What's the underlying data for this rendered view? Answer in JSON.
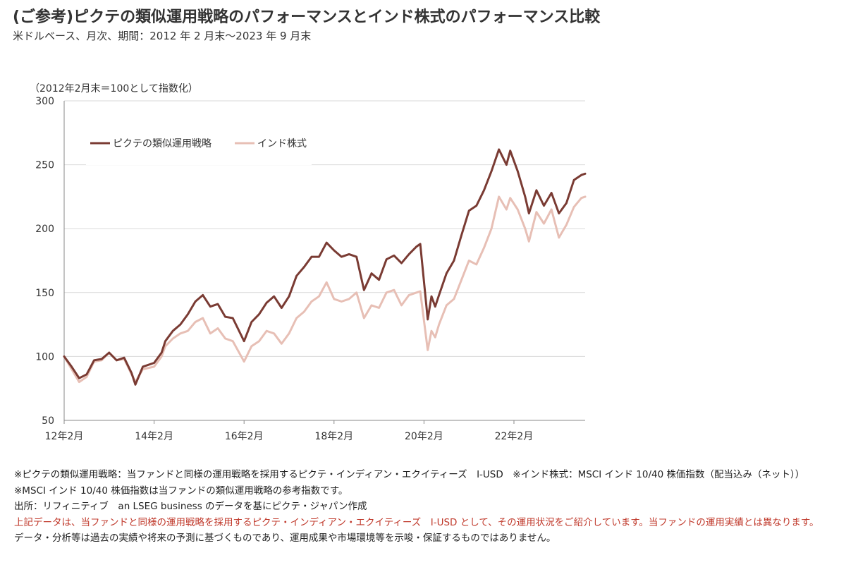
{
  "header": {
    "title": "(ご参考)ピクテの類似運用戦略のパフォーマンスとインド株式のパフォーマンス比較",
    "subtitle": "米ドルベース、月次、期間：2012 年 2 月末～2023 年 9 月末"
  },
  "chart_data": {
    "type": "line",
    "unit_label": "（2012年2月末＝100として指数化）",
    "ylim": [
      50,
      300
    ],
    "yticks": [
      "50",
      "100",
      "150",
      "200",
      "250",
      "300"
    ],
    "xlim": [
      "2012-02",
      "2023-09"
    ],
    "xticks": [
      {
        "date": "2012-02",
        "label": "12年2月"
      },
      {
        "date": "2014-02",
        "label": "14年2月"
      },
      {
        "date": "2016-02",
        "label": "16年2月"
      },
      {
        "date": "2018-02",
        "label": "18年2月"
      },
      {
        "date": "2020-02",
        "label": "20年2月"
      },
      {
        "date": "2022-02",
        "label": "22年2月"
      }
    ],
    "grid": "horizontal",
    "legend_position": "top-left",
    "series": [
      {
        "name": "ピクテの類似運用戦略",
        "color": "#7a3b33",
        "points": [
          [
            "2012-02",
            100
          ],
          [
            "2012-04",
            92
          ],
          [
            "2012-06",
            83
          ],
          [
            "2012-08",
            86
          ],
          [
            "2012-10",
            97
          ],
          [
            "2012-12",
            98
          ],
          [
            "2013-02",
            103
          ],
          [
            "2013-04",
            97
          ],
          [
            "2013-06",
            99
          ],
          [
            "2013-08",
            87
          ],
          [
            "2013-09",
            78
          ],
          [
            "2013-11",
            92
          ],
          [
            "2014-02",
            95
          ],
          [
            "2014-04",
            103
          ],
          [
            "2014-05",
            112
          ],
          [
            "2014-07",
            120
          ],
          [
            "2014-09",
            125
          ],
          [
            "2014-11",
            133
          ],
          [
            "2015-01",
            143
          ],
          [
            "2015-03",
            148
          ],
          [
            "2015-05",
            139
          ],
          [
            "2015-07",
            141
          ],
          [
            "2015-09",
            131
          ],
          [
            "2015-11",
            130
          ],
          [
            "2016-02",
            112
          ],
          [
            "2016-04",
            127
          ],
          [
            "2016-06",
            133
          ],
          [
            "2016-08",
            142
          ],
          [
            "2016-10",
            147
          ],
          [
            "2016-12",
            138
          ],
          [
            "2017-02",
            147
          ],
          [
            "2017-04",
            163
          ],
          [
            "2017-06",
            170
          ],
          [
            "2017-08",
            178
          ],
          [
            "2017-10",
            178
          ],
          [
            "2017-12",
            189
          ],
          [
            "2018-02",
            183
          ],
          [
            "2018-04",
            178
          ],
          [
            "2018-06",
            180
          ],
          [
            "2018-08",
            178
          ],
          [
            "2018-10",
            152
          ],
          [
            "2018-12",
            165
          ],
          [
            "2019-02",
            160
          ],
          [
            "2019-04",
            176
          ],
          [
            "2019-06",
            179
          ],
          [
            "2019-08",
            173
          ],
          [
            "2019-10",
            180
          ],
          [
            "2019-12",
            186
          ],
          [
            "2020-01",
            188
          ],
          [
            "2020-03",
            129
          ],
          [
            "2020-04",
            147
          ],
          [
            "2020-05",
            139
          ],
          [
            "2020-06",
            148
          ],
          [
            "2020-08",
            165
          ],
          [
            "2020-10",
            175
          ],
          [
            "2020-12",
            195
          ],
          [
            "2021-02",
            214
          ],
          [
            "2021-04",
            218
          ],
          [
            "2021-06",
            230
          ],
          [
            "2021-08",
            245
          ],
          [
            "2021-10",
            262
          ],
          [
            "2021-12",
            250
          ],
          [
            "2022-01",
            261
          ],
          [
            "2022-03",
            245
          ],
          [
            "2022-05",
            225
          ],
          [
            "2022-06",
            212
          ],
          [
            "2022-08",
            230
          ],
          [
            "2022-10",
            218
          ],
          [
            "2022-12",
            228
          ],
          [
            "2023-02",
            212
          ],
          [
            "2023-04",
            220
          ],
          [
            "2023-06",
            238
          ],
          [
            "2023-08",
            242
          ],
          [
            "2023-09",
            243
          ]
        ]
      },
      {
        "name": "インド株式",
        "color": "#e7bfb5",
        "points": [
          [
            "2012-02",
            100
          ],
          [
            "2012-04",
            90
          ],
          [
            "2012-06",
            80
          ],
          [
            "2012-08",
            84
          ],
          [
            "2012-10",
            96
          ],
          [
            "2012-12",
            97
          ],
          [
            "2013-02",
            103
          ],
          [
            "2013-04",
            97
          ],
          [
            "2013-06",
            98
          ],
          [
            "2013-08",
            86
          ],
          [
            "2013-09",
            80
          ],
          [
            "2013-11",
            90
          ],
          [
            "2014-02",
            92
          ],
          [
            "2014-04",
            100
          ],
          [
            "2014-05",
            108
          ],
          [
            "2014-07",
            114
          ],
          [
            "2014-09",
            118
          ],
          [
            "2014-11",
            120
          ],
          [
            "2015-01",
            127
          ],
          [
            "2015-03",
            130
          ],
          [
            "2015-05",
            118
          ],
          [
            "2015-07",
            122
          ],
          [
            "2015-09",
            114
          ],
          [
            "2015-11",
            112
          ],
          [
            "2016-02",
            96
          ],
          [
            "2016-04",
            108
          ],
          [
            "2016-06",
            112
          ],
          [
            "2016-08",
            120
          ],
          [
            "2016-10",
            118
          ],
          [
            "2016-12",
            110
          ],
          [
            "2017-02",
            118
          ],
          [
            "2017-04",
            130
          ],
          [
            "2017-06",
            135
          ],
          [
            "2017-08",
            143
          ],
          [
            "2017-10",
            147
          ],
          [
            "2017-12",
            158
          ],
          [
            "2018-02",
            145
          ],
          [
            "2018-04",
            143
          ],
          [
            "2018-06",
            145
          ],
          [
            "2018-08",
            150
          ],
          [
            "2018-10",
            130
          ],
          [
            "2018-12",
            140
          ],
          [
            "2019-02",
            138
          ],
          [
            "2019-04",
            150
          ],
          [
            "2019-06",
            152
          ],
          [
            "2019-08",
            140
          ],
          [
            "2019-10",
            148
          ],
          [
            "2019-12",
            150
          ],
          [
            "2020-01",
            151
          ],
          [
            "2020-03",
            105
          ],
          [
            "2020-04",
            120
          ],
          [
            "2020-05",
            115
          ],
          [
            "2020-06",
            125
          ],
          [
            "2020-08",
            140
          ],
          [
            "2020-10",
            145
          ],
          [
            "2020-12",
            160
          ],
          [
            "2021-02",
            175
          ],
          [
            "2021-04",
            172
          ],
          [
            "2021-06",
            185
          ],
          [
            "2021-08",
            200
          ],
          [
            "2021-10",
            225
          ],
          [
            "2021-12",
            215
          ],
          [
            "2022-01",
            224
          ],
          [
            "2022-03",
            215
          ],
          [
            "2022-05",
            200
          ],
          [
            "2022-06",
            190
          ],
          [
            "2022-08",
            213
          ],
          [
            "2022-10",
            204
          ],
          [
            "2022-12",
            215
          ],
          [
            "2023-02",
            193
          ],
          [
            "2023-04",
            203
          ],
          [
            "2023-06",
            217
          ],
          [
            "2023-08",
            224
          ],
          [
            "2023-09",
            225
          ]
        ]
      }
    ]
  },
  "notes": [
    {
      "text": "※ピクテの類似運用戦略：当ファンドと同様の運用戦略を採用するピクテ・インディアン・エクイティーズ　I-USD　※インド株式：MSCI インド 10/40 株価指数（配当込み（ネット））",
      "style": "wrap"
    },
    {
      "text": "※MSCI インド 10/40 株価指数は当ファンドの類似運用戦略の参考指数です。",
      "style": ""
    },
    {
      "text": "出所：リフィニティブ　an LSEG business のデータを基にピクテ・ジャパン作成",
      "style": ""
    },
    {
      "text": "上記データは、当ファンドと同様の運用戦略を採用するピクテ・インディアン・エクイティーズ　I-USD として、その運用状況をご紹介しています。当ファンドの運用実績とは異なります。",
      "style": "red wrap"
    },
    {
      "text": "データ・分析等は過去の実績や将来の予測に基づくものであり、運用成果や市場環境等を示唆・保証するものではありません。",
      "style": ""
    }
  ]
}
